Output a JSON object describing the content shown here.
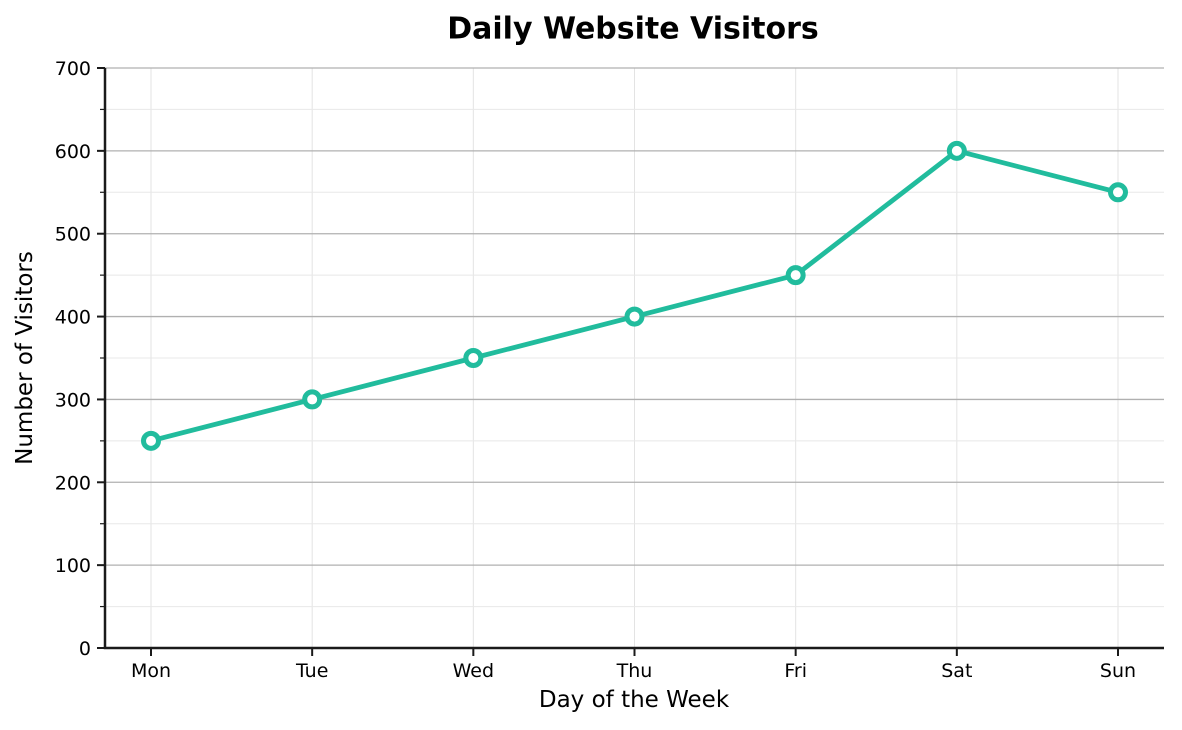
{
  "chart_data": {
    "type": "line",
    "title": "Daily Website Visitors",
    "xlabel": "Day of the Week",
    "ylabel": "Number of Visitors",
    "categories": [
      "Mon",
      "Tue",
      "Wed",
      "Thu",
      "Fri",
      "Sat",
      "Sun"
    ],
    "values": [
      250,
      300,
      350,
      400,
      450,
      600,
      550
    ],
    "ylim": [
      0,
      700
    ],
    "y_major_tick_step": 100,
    "y_minor_tick_step": 50,
    "grid": "horizontal major + minor, vertical at each category",
    "legend": "none",
    "colors": {
      "line": "#21bc9d",
      "marker_fill": "#ffffff",
      "grid_major": "#b0b0b0",
      "grid_minor": "#e8e8e8",
      "grid_vertical": "#e3e3e3",
      "axis": "#1a1a1a",
      "text": "#000000",
      "background": "#ffffff"
    }
  }
}
